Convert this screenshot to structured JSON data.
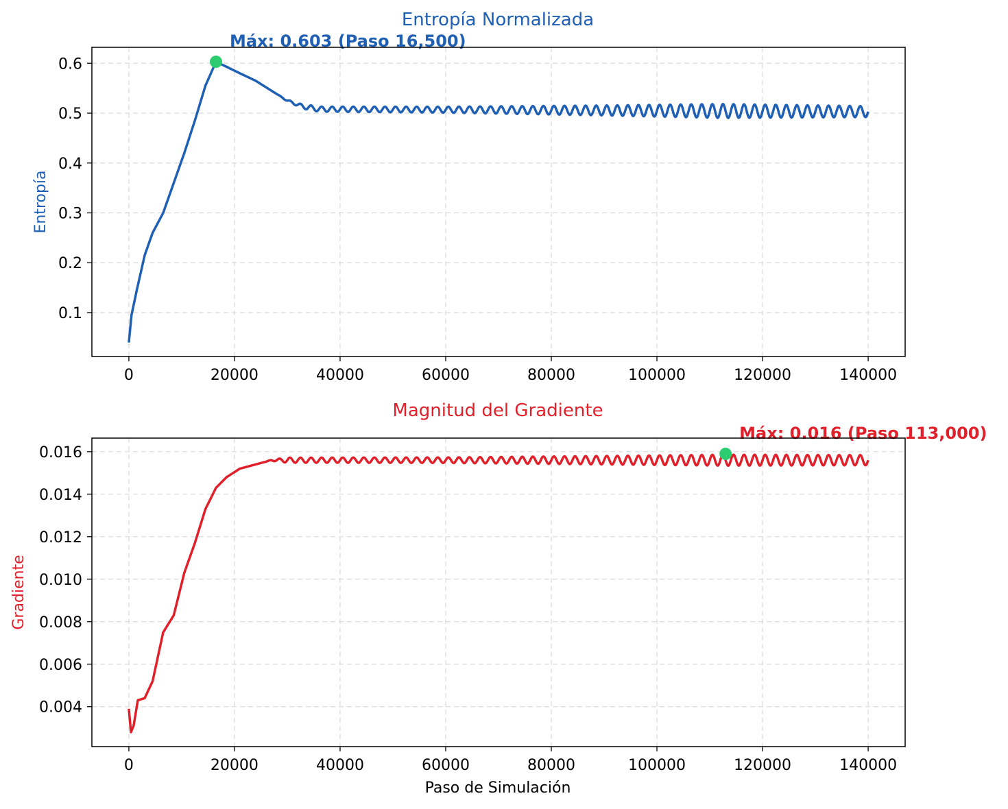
{
  "chart_data": [
    {
      "type": "line",
      "title": "Entropía Normalizada",
      "xlabel": "",
      "ylabel": "Entropía",
      "xlim": [
        -7000,
        147000
      ],
      "ylim": [
        0.012,
        0.632
      ],
      "x_ticks": [
        0,
        20000,
        40000,
        60000,
        80000,
        100000,
        120000,
        140000
      ],
      "x_tick_labels": [
        "0",
        "20000",
        "40000",
        "60000",
        "80000",
        "100000",
        "120000",
        "140000"
      ],
      "y_ticks": [
        0.1,
        0.2,
        0.3,
        0.4,
        0.5,
        0.6
      ],
      "y_tick_labels": [
        "0.1",
        "0.2",
        "0.3",
        "0.4",
        "0.5",
        "0.6"
      ],
      "grid": true,
      "colors": {
        "line": "#1f5fb4",
        "title": "#1f5fb4",
        "marker": "#2ecc71"
      },
      "envelope": [
        [
          0,
          0.04
        ],
        [
          500,
          0.095
        ],
        [
          1500,
          0.145
        ],
        [
          3000,
          0.215
        ],
        [
          4500,
          0.26
        ],
        [
          6500,
          0.3
        ],
        [
          8500,
          0.36
        ],
        [
          10500,
          0.42
        ],
        [
          12500,
          0.485
        ],
        [
          14500,
          0.555
        ],
        [
          16500,
          0.603
        ],
        [
          18500,
          0.593
        ],
        [
          21000,
          0.58
        ],
        [
          24000,
          0.565
        ],
        [
          27000,
          0.545
        ],
        [
          30000,
          0.525
        ],
        [
          33000,
          0.513
        ],
        [
          36000,
          0.508
        ],
        [
          140000,
          0.503
        ]
      ],
      "oscillation": {
        "period": 2000,
        "start": 28000,
        "amplitude_points": [
          [
            28000,
            0.0
          ],
          [
            34000,
            0.005
          ],
          [
            60000,
            0.006
          ],
          [
            90000,
            0.01
          ],
          [
            112000,
            0.014
          ],
          [
            140000,
            0.011
          ]
        ]
      },
      "max_point": {
        "x": 16500,
        "y": 0.603
      },
      "annotation": "Máx: 0.603 (Paso 16,500)"
    },
    {
      "type": "line",
      "title": "Magnitud del Gradiente",
      "xlabel": "Paso de Simulación",
      "ylabel": "Gradiente",
      "xlim": [
        -7000,
        147000
      ],
      "ylim": [
        0.00212,
        0.01664
      ],
      "x_ticks": [
        0,
        20000,
        40000,
        60000,
        80000,
        100000,
        120000,
        140000
      ],
      "x_tick_labels": [
        "0",
        "20000",
        "40000",
        "60000",
        "80000",
        "100000",
        "120000",
        "140000"
      ],
      "y_ticks": [
        0.004,
        0.006,
        0.008,
        0.01,
        0.012,
        0.014,
        0.016
      ],
      "y_tick_labels": [
        "0.004",
        "0.006",
        "0.008",
        "0.010",
        "0.012",
        "0.014",
        "0.016"
      ],
      "grid": true,
      "colors": {
        "line": "#e0202a",
        "title": "#e0202a",
        "marker": "#2ecc71"
      },
      "envelope": [
        [
          0,
          0.0039
        ],
        [
          400,
          0.0028
        ],
        [
          900,
          0.0031
        ],
        [
          1700,
          0.0043
        ],
        [
          3000,
          0.0044
        ],
        [
          4500,
          0.0052
        ],
        [
          6500,
          0.0075
        ],
        [
          8500,
          0.0083
        ],
        [
          10500,
          0.0103
        ],
        [
          12500,
          0.0117
        ],
        [
          14500,
          0.0133
        ],
        [
          16500,
          0.0143
        ],
        [
          18500,
          0.0148
        ],
        [
          21000,
          0.0152
        ],
        [
          24000,
          0.0154
        ],
        [
          27000,
          0.0156
        ],
        [
          30000,
          0.0156
        ],
        [
          140000,
          0.0156
        ]
      ],
      "oscillation": {
        "period": 2000,
        "start": 26000,
        "amplitude_points": [
          [
            26000,
            0.0
          ],
          [
            30000,
            0.00012
          ],
          [
            60000,
            0.00013
          ],
          [
            90000,
            0.0002
          ],
          [
            113000,
            0.00026
          ],
          [
            140000,
            0.00024
          ]
        ]
      },
      "max_point": {
        "x": 113000,
        "y": 0.0159
      },
      "annotation": "Máx: 0.016 (Paso 113,000)"
    }
  ]
}
